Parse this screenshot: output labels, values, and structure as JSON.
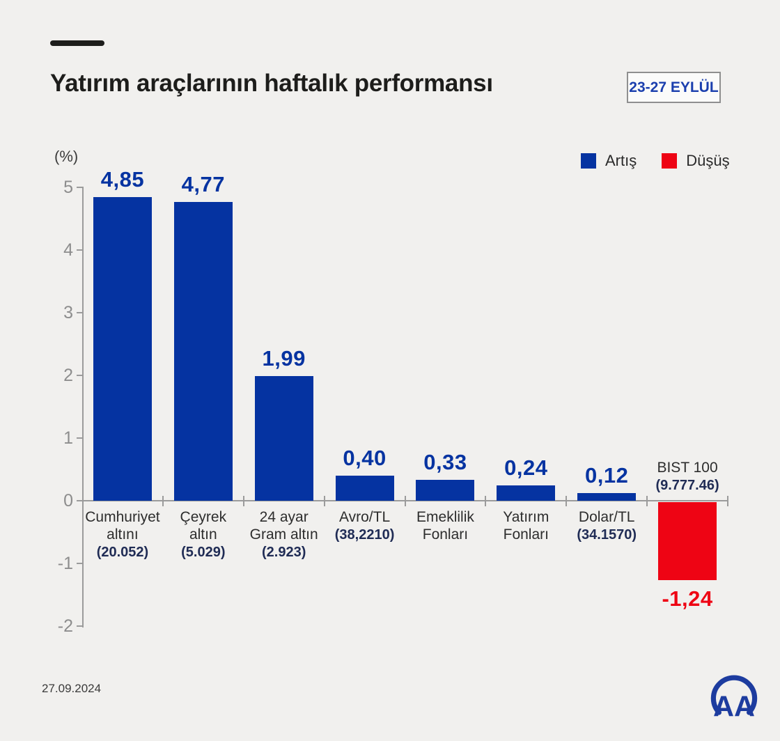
{
  "header": {
    "title": "Yatırım araçlarının haftalık performansı",
    "date_badge": "23-27 EYLÜL"
  },
  "legend": {
    "items": [
      {
        "label": "Artış",
        "color": "#0533a1"
      },
      {
        "label": "Düşüş",
        "color": "#ee0414"
      }
    ]
  },
  "chart_data": {
    "type": "bar",
    "title": "Yatırım araçlarının haftalık performansı",
    "unit_label": "(%)",
    "ylabel": "(%)",
    "ylim": [
      -2,
      5
    ],
    "yticks": [
      5,
      4,
      3,
      2,
      1,
      0,
      -1,
      -2
    ],
    "grid": false,
    "legend_position": "top-right",
    "colors": {
      "up": "#0533a1",
      "down": "#ee0414"
    },
    "categories": [
      {
        "name_lines": [
          "Cumhuriyet",
          "altını"
        ],
        "sublabel": "(20.052)",
        "value": 4.85,
        "value_label": "4,85",
        "direction": "up"
      },
      {
        "name_lines": [
          "Çeyrek",
          "altın"
        ],
        "sublabel": "(5.029)",
        "value": 4.77,
        "value_label": "4,77",
        "direction": "up"
      },
      {
        "name_lines": [
          "24 ayar",
          "Gram altın"
        ],
        "sublabel": "(2.923)",
        "value": 1.99,
        "value_label": "1,99",
        "direction": "up"
      },
      {
        "name_lines": [
          "Avro/TL"
        ],
        "sublabel": "(38,2210)",
        "value": 0.4,
        "value_label": "0,40",
        "direction": "up"
      },
      {
        "name_lines": [
          "Emeklilik",
          "Fonları"
        ],
        "value": 0.33,
        "value_label": "0,33",
        "direction": "up"
      },
      {
        "name_lines": [
          "Yatırım",
          "Fonları"
        ],
        "value": 0.24,
        "value_label": "0,24",
        "direction": "up"
      },
      {
        "name_lines": [
          "Dolar/TL"
        ],
        "sublabel": "(34.1570)",
        "value": 0.12,
        "value_label": "0,12",
        "direction": "up"
      },
      {
        "name_lines": [
          "BIST 100"
        ],
        "sublabel": "(9.777.46)",
        "value": -1.24,
        "value_label": "-1,24",
        "direction": "down",
        "label_above_axis": true
      }
    ]
  },
  "footer": {
    "date": "27.09.2024",
    "logo": "AA"
  }
}
